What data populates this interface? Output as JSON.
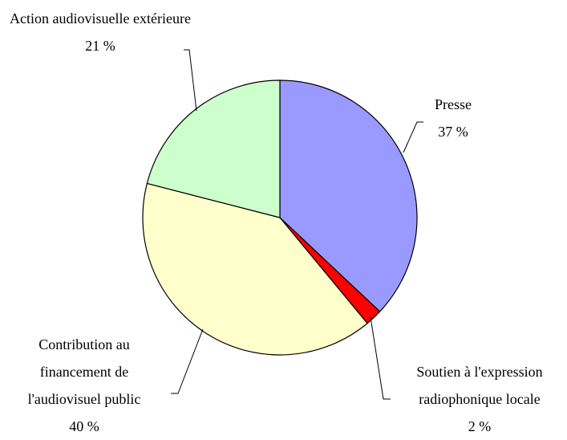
{
  "chart_data": {
    "type": "pie",
    "categories": [
      "Presse",
      "Soutien à l'expression radiophonique locale",
      "Contribution au financement de l'audiovisuel public",
      "Action audiovisuelle extérieure"
    ],
    "values": [
      37,
      2,
      40,
      21
    ],
    "value_labels": [
      "37 %",
      "2 %",
      "40 %",
      "21 %"
    ],
    "colors": [
      "#9999ff",
      "#ff0000",
      "#ffffcc",
      "#ccffcc"
    ]
  }
}
